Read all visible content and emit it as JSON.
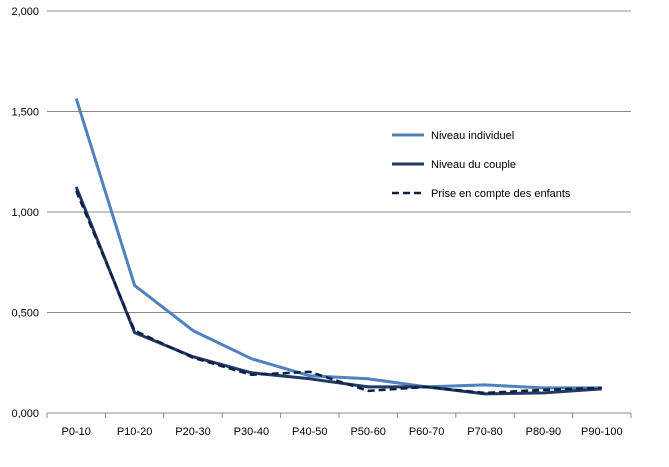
{
  "chart_data": {
    "type": "line",
    "title": "",
    "xlabel": "",
    "ylabel": "",
    "categories": [
      "P0-10",
      "P10-20",
      "P20-30",
      "P30-40",
      "P40-50",
      "P50-60",
      "P60-70",
      "P70-80",
      "P80-90",
      "P90-100"
    ],
    "ylim": [
      0,
      2
    ],
    "yticks": [
      "0,000",
      "0,500",
      "1,000",
      "1,500",
      "2,000"
    ],
    "ytick_values": [
      0,
      0.5,
      1.0,
      1.5,
      2.0
    ],
    "grid": "horizontal",
    "legend_position": "right",
    "series": [
      {
        "name": "Niveau individuel",
        "color": "#4F81BD",
        "style": "solid",
        "values": [
          1.565,
          0.635,
          0.41,
          0.27,
          0.185,
          0.17,
          0.13,
          0.14,
          0.125,
          0.125
        ]
      },
      {
        "name": "Niveau du couple",
        "color": "#1F3864",
        "style": "solid",
        "values": [
          1.125,
          0.4,
          0.28,
          0.2,
          0.17,
          0.13,
          0.13,
          0.095,
          0.1,
          0.12
        ]
      },
      {
        "name": "Prise en compte des enfants",
        "color": "#0F1F40",
        "style": "dashed",
        "values": [
          1.105,
          0.41,
          0.275,
          0.19,
          0.205,
          0.11,
          0.13,
          0.1,
          0.115,
          0.125
        ]
      }
    ]
  }
}
